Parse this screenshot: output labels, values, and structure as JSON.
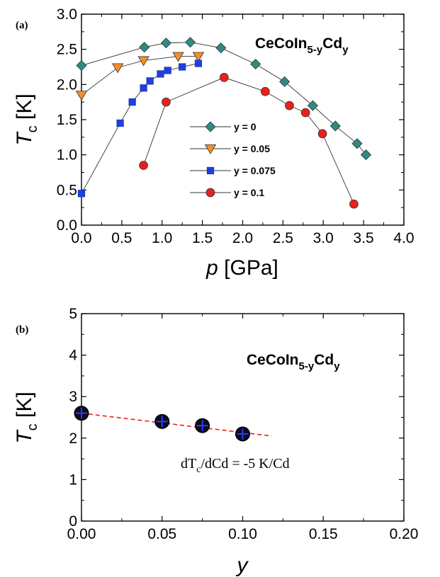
{
  "chart_data": [
    {
      "type": "scatter",
      "panel_label": "(a)",
      "title_main": "CeCoIn",
      "title_sub1": "5-y",
      "title_mid": "Cd",
      "title_sub2": "y",
      "xlabel_italic": "p",
      "xlabel_rest": " [GPa]",
      "ylabel_italic": "T",
      "ylabel_sub": "c",
      "ylabel_rest": " [K]",
      "xlim": [
        0.0,
        4.0
      ],
      "ylim": [
        0.0,
        3.0
      ],
      "xticks": [
        "0.0",
        "0.5",
        "1.0",
        "1.5",
        "2.0",
        "2.5",
        "3.0",
        "3.5",
        "4.0"
      ],
      "yticks": [
        "0.0",
        "0.5",
        "1.0",
        "1.5",
        "2.0",
        "2.5",
        "3.0"
      ],
      "grid": false,
      "legend_position": "center",
      "series": [
        {
          "name": "y = 0",
          "marker": "diamond",
          "color": "#2e8b84",
          "points": [
            [
              0.0,
              2.27
            ],
            [
              0.78,
              2.53
            ],
            [
              1.05,
              2.59
            ],
            [
              1.35,
              2.6
            ],
            [
              1.73,
              2.52
            ],
            [
              2.16,
              2.29
            ],
            [
              2.52,
              2.04
            ],
            [
              2.87,
              1.7
            ],
            [
              3.15,
              1.41
            ],
            [
              3.42,
              1.16
            ],
            [
              3.53,
              1.0
            ]
          ]
        },
        {
          "name": "y = 0.05",
          "marker": "triangle-down",
          "color": "#f0902a",
          "points": [
            [
              0.0,
              1.85
            ],
            [
              0.45,
              2.24
            ],
            [
              0.77,
              2.34
            ],
            [
              1.2,
              2.4
            ],
            [
              1.45,
              2.4
            ]
          ]
        },
        {
          "name": "y = 0.075",
          "marker": "square",
          "color": "#1f3fe0",
          "points": [
            [
              0.0,
              0.45
            ],
            [
              0.48,
              1.45
            ],
            [
              0.63,
              1.75
            ],
            [
              0.77,
              1.95
            ],
            [
              0.85,
              2.05
            ],
            [
              0.98,
              2.15
            ],
            [
              1.07,
              2.2
            ],
            [
              1.25,
              2.25
            ],
            [
              1.45,
              2.3
            ]
          ]
        },
        {
          "name": "y = 0.1",
          "marker": "circle",
          "color": "#e8201c",
          "points": [
            [
              0.77,
              0.85
            ],
            [
              1.05,
              1.75
            ],
            [
              1.77,
              2.1
            ],
            [
              2.28,
              1.9
            ],
            [
              2.58,
              1.7
            ],
            [
              2.78,
              1.6
            ],
            [
              2.99,
              1.3
            ],
            [
              3.38,
              0.3
            ]
          ]
        }
      ]
    },
    {
      "type": "scatter",
      "panel_label": "(b)",
      "title_main": "CeCoIn",
      "title_sub1": "5-y",
      "title_mid": "Cd",
      "title_sub2": "y",
      "xlabel_italic": "y",
      "xlabel_rest": "",
      "ylabel_italic": "T",
      "ylabel_sub": "c",
      "ylabel_rest": " [K]",
      "xlim": [
        0.0,
        0.2
      ],
      "ylim": [
        0,
        5
      ],
      "xticks": [
        "0.00",
        "0.05",
        "0.10",
        "0.15",
        "0.20"
      ],
      "yticks": [
        "0",
        "1",
        "2",
        "3",
        "4",
        "5"
      ],
      "grid": false,
      "annotation_a": "dT",
      "annotation_sub": "c",
      "annotation_b": "/dCd = -5 K/Cd",
      "fit": {
        "color": "#e8201c",
        "style": "dashed",
        "from": [
          0.0,
          2.6
        ],
        "to": [
          0.118,
          2.05
        ]
      },
      "points": [
        [
          0.0,
          2.6
        ],
        [
          0.05,
          2.4
        ],
        [
          0.075,
          2.3
        ],
        [
          0.1,
          2.1
        ]
      ]
    }
  ]
}
